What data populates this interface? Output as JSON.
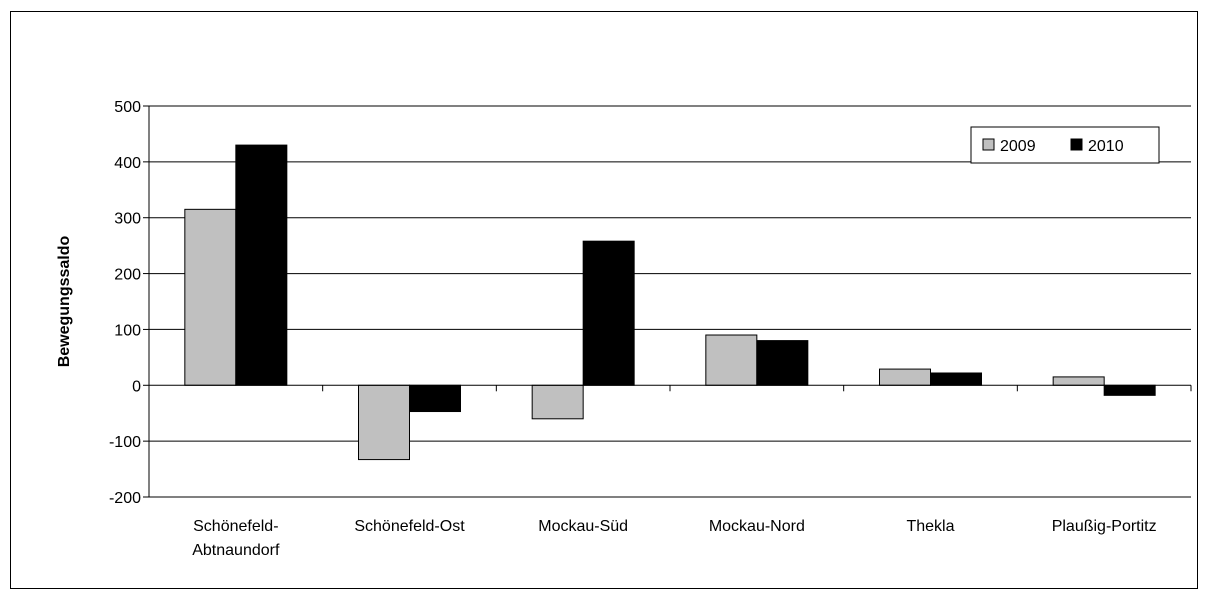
{
  "chart_data": {
    "type": "bar",
    "title": "",
    "xlabel": "",
    "ylabel": "Bewegungssaldo",
    "ylim": [
      -200,
      500
    ],
    "yticks": [
      -200,
      -100,
      0,
      100,
      200,
      300,
      400,
      500
    ],
    "grid": true,
    "legend_position": "top-right",
    "categories": [
      [
        "Schönefeld-",
        "Abtnaundorf"
      ],
      [
        "Schönefeld-Ost"
      ],
      [
        "Mockau-Süd"
      ],
      [
        "Mockau-Nord"
      ],
      [
        "Thekla"
      ],
      [
        "Plaußig-Portitz"
      ]
    ],
    "series": [
      {
        "name": "2009",
        "color": "#c0c0c0",
        "values": [
          315,
          -133,
          -60,
          90,
          29,
          15
        ]
      },
      {
        "name": "2010",
        "color": "#000000",
        "values": [
          430,
          -47,
          258,
          80,
          22,
          -18
        ]
      }
    ]
  }
}
